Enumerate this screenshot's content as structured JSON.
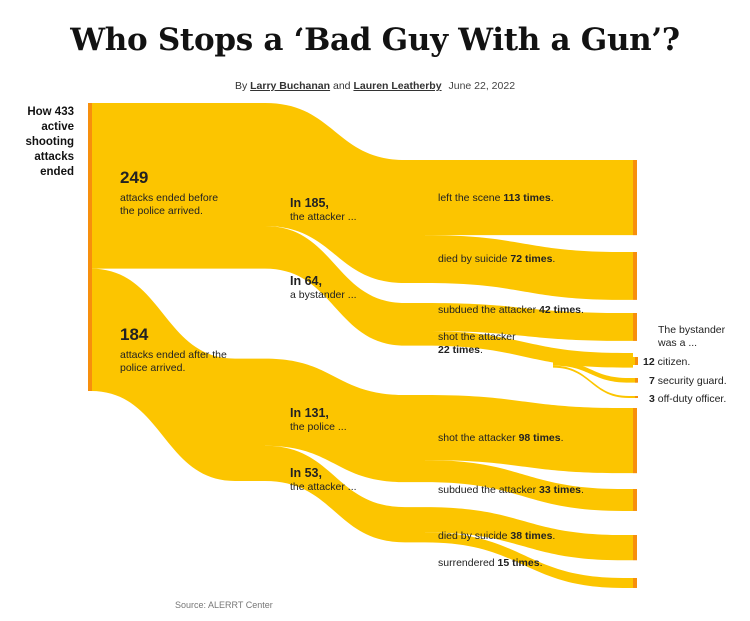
{
  "header": {
    "title": "Who Stops a ‘Bad Guy With a Gun’?",
    "byline_prefix": "By",
    "author1": "Larry Buchanan",
    "byline_and": "and",
    "author2": "Lauren Leatherby",
    "date": "June 22, 2022"
  },
  "root": {
    "label": "How 433 active shooting attacks ended",
    "value": 433
  },
  "stage1": [
    {
      "value_text": "249",
      "text": "attacks ended before the police arrived.",
      "value": 249
    },
    {
      "value_text": "184",
      "text": "attacks ended after the police arrived.",
      "value": 184
    }
  ],
  "stage2": [
    {
      "head": "In 185,",
      "text": "the attacker ...",
      "value": 185
    },
    {
      "head": "In 64,",
      "text": "a bystander ...",
      "value": 64
    },
    {
      "head": "In 131,",
      "text": "the police ...",
      "value": 131
    },
    {
      "head": "In 53,",
      "text": "the attacker ...",
      "value": 53
    }
  ],
  "outcomes": [
    {
      "pre": "left the scene",
      "num": "113 times",
      "post": ".",
      "value": 113
    },
    {
      "pre": "died by suicide",
      "num": "72 times",
      "post": ".",
      "value": 72
    },
    {
      "pre": "subdued the attacker",
      "num": "42 times",
      "post": ".",
      "value": 42
    },
    {
      "pre": "shot the attacker",
      "num": "22 times",
      "post": ".",
      "value": 22
    },
    {
      "pre": "shot the attacker",
      "num": "98 times",
      "post": ".",
      "value": 98
    },
    {
      "pre": "subdued the attacker",
      "num": "33 times",
      "post": ".",
      "value": 33
    },
    {
      "pre": "died by suicide",
      "num": "38 times",
      "post": ".",
      "value": 38
    },
    {
      "pre": "surrendered",
      "num": "15 times",
      "post": ".",
      "value": 15
    }
  ],
  "bystander": {
    "heading": "The bystander was a ...",
    "items": [
      {
        "num": "12",
        "text": "citizen.",
        "value": 12
      },
      {
        "num": "7",
        "text": "security guard.",
        "value": 7
      },
      {
        "num": "3",
        "text": "off-duty officer.",
        "value": 3
      }
    ]
  },
  "source": "Source: ALERRT Center",
  "colors": {
    "flow": "#fcc500",
    "node": "#f78f0d",
    "text": "#121212"
  }
}
